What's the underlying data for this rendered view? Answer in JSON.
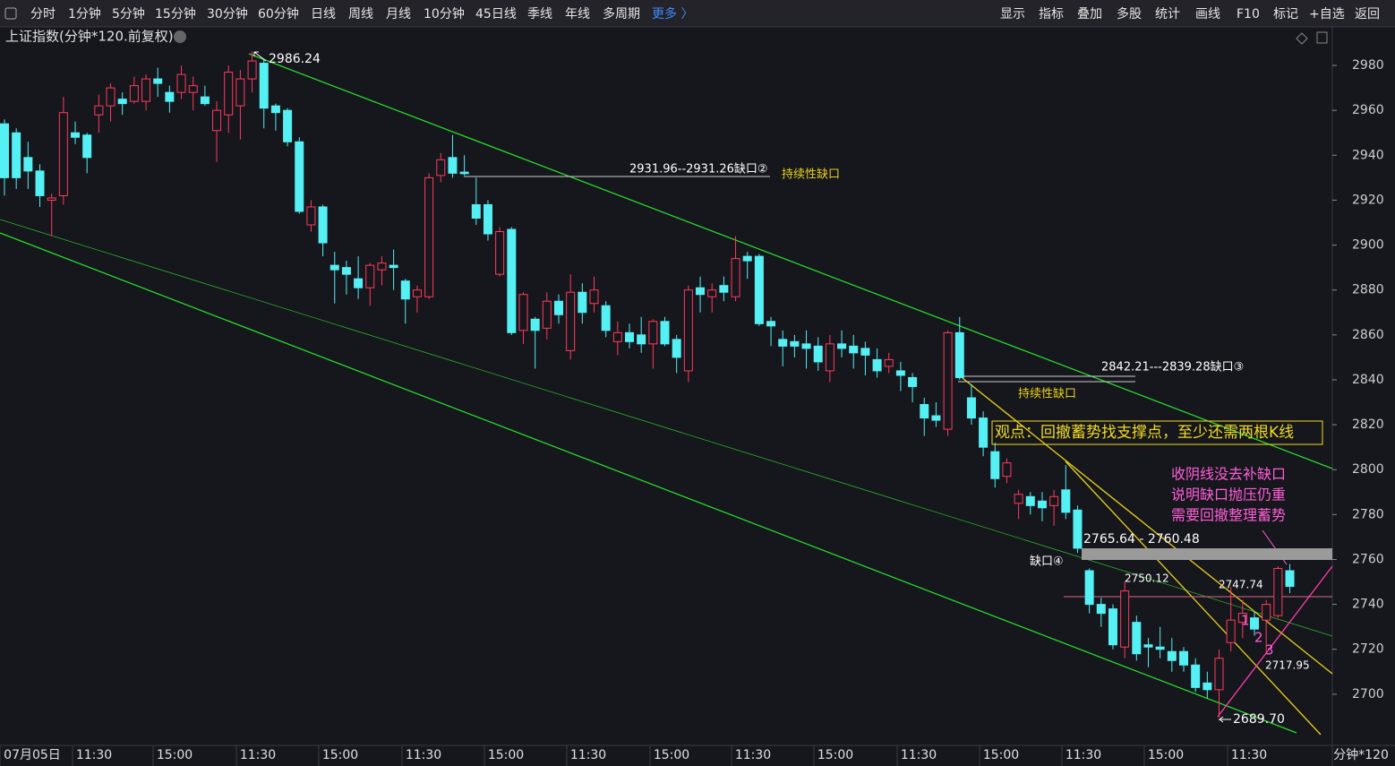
{
  "toolbar": {
    "left": [
      "分时",
      "1分钟",
      "5分钟",
      "15分钟",
      "30分钟",
      "60分钟",
      "日线",
      "周线",
      "月线",
      "10分钟",
      "45日线",
      "季线",
      "年线",
      "多周期"
    ],
    "more": "更多 〉",
    "right": [
      "显示",
      "指标",
      "叠加",
      "多股",
      "统计",
      "画线",
      "F10",
      "标记",
      "+自选",
      "返回"
    ]
  },
  "chart_data": {
    "type": "candlestick",
    "title": "上证指数(分钟*120.前复权)",
    "open": [
      2954,
      2950,
      2939,
      2933,
      2920,
      2922,
      2950,
      2949,
      2958,
      2962,
      2965,
      2964,
      2964,
      2974,
      2968,
      2968,
      2968,
      2966,
      2951,
      2958,
      2962,
      2974,
      2981,
      2962,
      2960,
      2946,
      2909,
      2917,
      2891,
      2890,
      2885,
      2881,
      2889,
      2891,
      2884,
      2877,
      2877,
      2931,
      2939,
      2932.5,
      2918,
      2918,
      2887,
      2907,
      2862,
      2867,
      2863,
      2875,
      2853,
      2879,
      2874,
      2873,
      2857,
      2861,
      2860,
      2856,
      2866,
      2858,
      2844,
      2881,
      2877,
      2882,
      2877,
      2895,
      2895,
      2866,
      2858,
      2857,
      2856,
      2855,
      2844,
      2856,
      2855,
      2854,
      2849,
      2846,
      2844,
      2841,
      2829,
      2824,
      2818,
      2861,
      2832,
      2823,
      2808,
      2797,
      2785,
      2788,
      2786,
      2784,
      2791,
      2782,
      2755,
      2740,
      2738,
      2721,
      2732,
      2722,
      2721,
      2719,
      2719,
      2713,
      2705,
      2702,
      2723,
      2732,
      2734,
      2733,
      2735,
      2755
    ],
    "high": [
      2956,
      2952,
      2946,
      2936,
      2923,
      2966,
      2955,
      2950,
      2967,
      2972,
      2968,
      2975,
      2976,
      2979,
      2971,
      2980,
      2975,
      2971,
      2964,
      2980,
      2978,
      2986.24,
      2983,
      2963,
      2961,
      2948,
      2920,
      2918,
      2897,
      2893,
      2895,
      2892,
      2895,
      2898,
      2885,
      2882,
      2932,
      2941,
      2949,
      2940,
      2930,
      2920,
      2908,
      2908,
      2879,
      2868,
      2879,
      2878,
      2887,
      2883,
      2886,
      2875,
      2866,
      2865,
      2868,
      2867,
      2868,
      2860,
      2882,
      2886,
      2883,
      2886,
      2904,
      2897,
      2896,
      2868,
      2862,
      2860,
      2862,
      2859,
      2860,
      2862,
      2860,
      2857,
      2854,
      2852,
      2848,
      2843,
      2832,
      2830,
      2862,
      2868,
      2838,
      2826,
      2812,
      2805,
      2791,
      2790,
      2790,
      2791,
      2802,
      2784,
      2756,
      2743,
      2740,
      2750.12,
      2735,
      2725,
      2730,
      2725,
      2721,
      2716,
      2710,
      2720,
      2747.74,
      2742,
      2737,
      2742,
      2757,
      2758
    ],
    "low": [
      2922,
      2925,
      2925,
      2917,
      2904,
      2918,
      2945,
      2932,
      2950,
      2955,
      2958,
      2963,
      2960,
      2966,
      2959,
      2965,
      2960,
      2962,
      2937,
      2950,
      2947,
      2968,
      2952,
      2951,
      2944,
      2914,
      2906,
      2895,
      2874,
      2878,
      2876,
      2873,
      2882,
      2880,
      2865,
      2870,
      2876,
      2928,
      2930,
      2931,
      2909,
      2902,
      2886,
      2860,
      2856,
      2845,
      2858,
      2865,
      2849,
      2865,
      2870,
      2859,
      2851,
      2854,
      2852,
      2845,
      2855,
      2843,
      2839,
      2870,
      2870,
      2875,
      2875,
      2885,
      2864,
      2855,
      2846,
      2850,
      2845,
      2844,
      2839,
      2850,
      2845,
      2842,
      2841,
      2843,
      2835,
      2830,
      2815,
      2819,
      2815,
      2840,
      2820,
      2806,
      2792,
      2794,
      2778,
      2780,
      2777,
      2775,
      2778,
      2763,
      2736,
      2730,
      2720,
      2716,
      2715,
      2712,
      2716,
      2710,
      2710,
      2701,
      2698,
      2689.7,
      2719,
      2725,
      2726,
      2717.95,
      2734,
      2745
    ],
    "close": [
      2930,
      2930,
      2933,
      2922,
      2921,
      2959,
      2948,
      2939,
      2962,
      2970,
      2963,
      2971,
      2974,
      2972,
      2964,
      2976,
      2971,
      2963,
      2960,
      2977,
      2974,
      2982,
      2961,
      2959,
      2946,
      2915,
      2917,
      2901,
      2889,
      2887,
      2881,
      2891,
      2892,
      2890,
      2876,
      2880,
      2930,
      2938,
      2932,
      2931.8,
      2912,
      2905,
      2906,
      2861,
      2878,
      2862,
      2875,
      2869,
      2879,
      2870,
      2880,
      2862,
      2861,
      2857,
      2856,
      2866,
      2856,
      2850,
      2880,
      2878,
      2880,
      2879,
      2894,
      2893,
      2865,
      2864,
      2855,
      2855,
      2854,
      2848,
      2856,
      2854,
      2852,
      2851,
      2844,
      2849,
      2842,
      2837,
      2823,
      2822,
      2861,
      2841,
      2823,
      2810,
      2796,
      2803,
      2789,
      2784,
      2783,
      2788,
      2781,
      2765,
      2740,
      2736,
      2722,
      2746,
      2718,
      2721,
      2720,
      2715,
      2713,
      2703,
      2702,
      2716,
      2733,
      2736,
      2729,
      2740,
      2756,
      2748
    ],
    "ylim": [
      2678,
      2988.4
    ],
    "yticks": [
      2700,
      2720,
      2740,
      2760,
      2780,
      2800,
      2820,
      2840,
      2860,
      2880,
      2900,
      2920,
      2940,
      2960,
      2980
    ],
    "x_labels": [
      "07月05日",
      "11:30",
      "15:00",
      "11:30",
      "15:00",
      "11:30",
      "15:00",
      "11:30",
      "15:00",
      "11:30",
      "15:00",
      "11:30",
      "15:00",
      "11:30",
      "15:00",
      "11:30"
    ],
    "x_unit": "分钟*120",
    "colors": {
      "up": "#ff3b5c",
      "down": "#54f0f4"
    },
    "annotations": {
      "peak": "2986.24",
      "gap2": "2931.96--2931.26缺口②",
      "cont1": "持续性缺口",
      "gap3": "2842.21---2839.28缺口③",
      "cont2": "持续性缺口",
      "view": "观点：回撤蓄势找支撑点，至少还需两根K线",
      "note1": "收阴线没去补缺口",
      "note2": "说明缺口抛压仍重",
      "note3": "需要回撤整理蓄势",
      "band": "2765.64 - 2760.48",
      "gap4": "缺口④",
      "h1": "2750.12",
      "h2": "2747.74",
      "l2": "2717.95",
      "low": "2689.70",
      "n1": "1",
      "n2": "2",
      "n3": "3"
    }
  }
}
